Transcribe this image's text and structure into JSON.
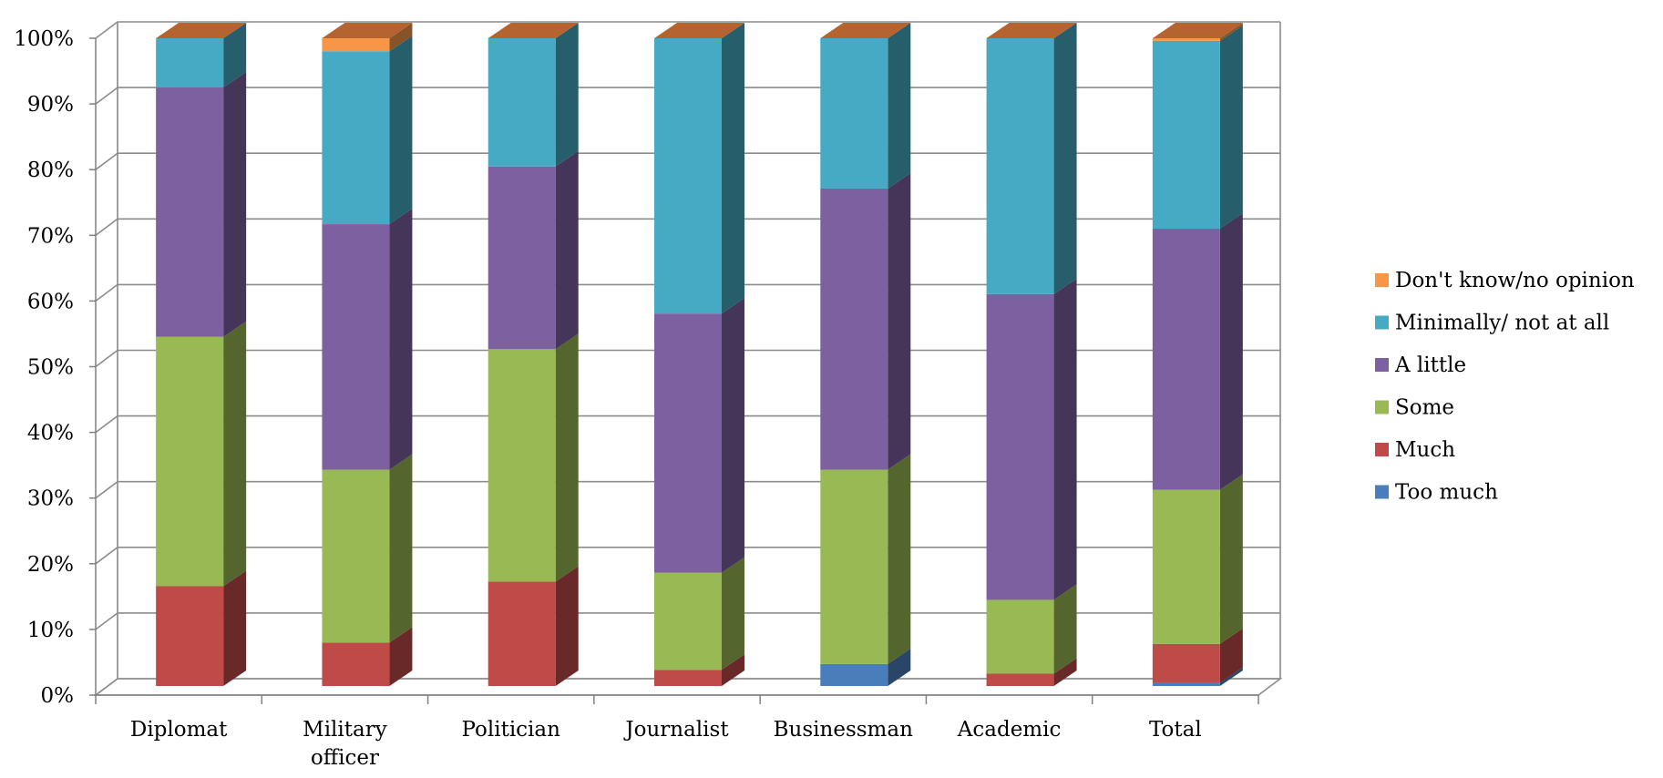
{
  "chart_data": {
    "type": "bar",
    "stacked": true,
    "percent": true,
    "three_d": true,
    "title": "",
    "xlabel": "",
    "ylabel": "",
    "ylim": [
      0,
      100
    ],
    "y_ticks": [
      "0%",
      "10%",
      "20%",
      "30%",
      "40%",
      "50%",
      "60%",
      "70%",
      "80%",
      "90%",
      "100%"
    ],
    "grid": true,
    "legend_position": "right",
    "categories": [
      "Diplomat",
      "Military officer",
      "Politician",
      "Journalist",
      "Businessman",
      "Academic",
      "Total"
    ],
    "category_lines": [
      [
        "Diplomat"
      ],
      [
        "Military",
        "officer"
      ],
      [
        "Politician"
      ],
      [
        "Journalist"
      ],
      [
        "Businessman"
      ],
      [
        "Academic"
      ],
      [
        "Total"
      ]
    ],
    "series": [
      {
        "name": "Too much",
        "color": "#4a7ebb",
        "values": [
          0,
          0,
          0,
          0,
          3.4,
          0,
          0.5
        ]
      },
      {
        "name": "Much",
        "color": "#be4b48",
        "values": [
          15.4,
          6.7,
          16.1,
          2.5,
          0,
          1.9,
          6.0
        ]
      },
      {
        "name": "Some",
        "color": "#98b954",
        "values": [
          38.5,
          26.7,
          35.9,
          15.0,
          30.0,
          11.4,
          23.8
        ]
      },
      {
        "name": "A little",
        "color": "#7d60a0",
        "values": [
          38.5,
          37.9,
          28.2,
          40.0,
          43.4,
          47.2,
          40.3
        ]
      },
      {
        "name": "Minimally/ not at all",
        "color": "#46aac5",
        "values": [
          7.6,
          26.7,
          19.8,
          42.5,
          23.2,
          39.5,
          29.0
        ]
      },
      {
        "name": "Don't know/no opinion",
        "color": "#f79646",
        "values": [
          0,
          2.0,
          0,
          0,
          0,
          0,
          0.4
        ]
      }
    ]
  }
}
